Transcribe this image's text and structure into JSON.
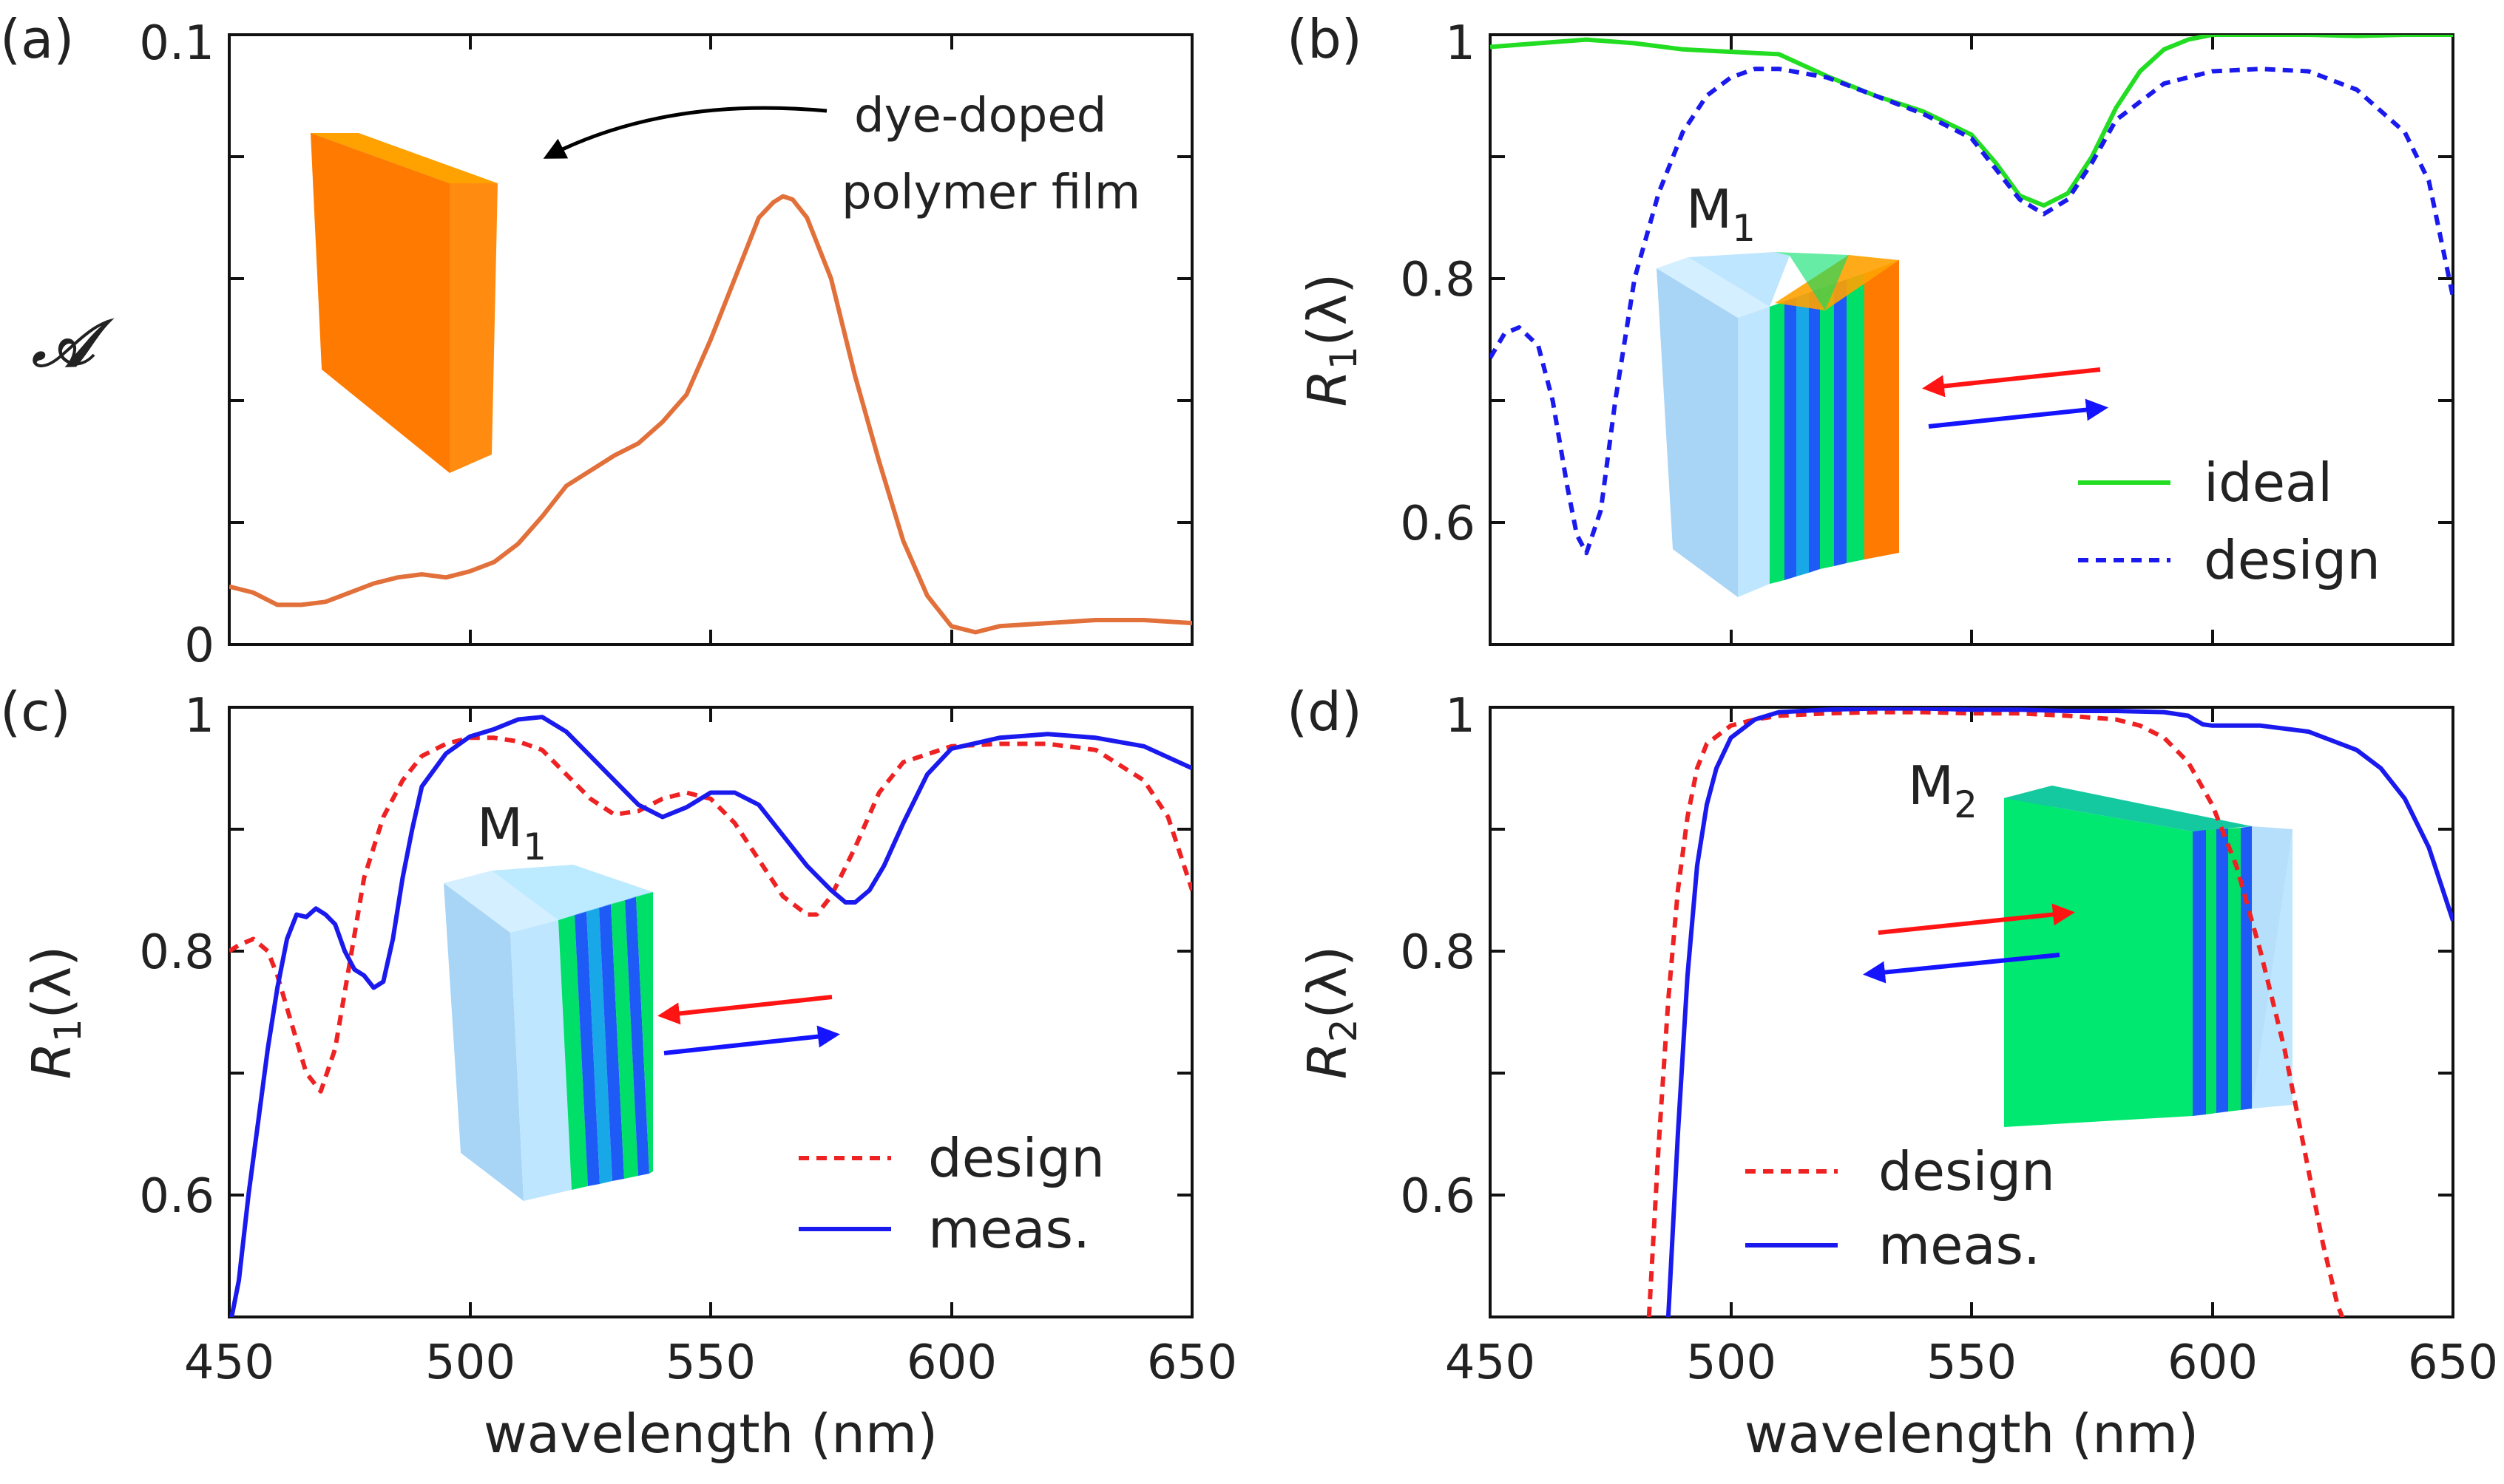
{
  "figure": {
    "xlabel": "wavelength (nm)",
    "x_ticks": [
      "450",
      "500",
      "550",
      "600",
      "650"
    ]
  },
  "chart_data": [
    {
      "type": "line",
      "panel": "(a)",
      "ylabel": "𝒜",
      "xlim": [
        450,
        650
      ],
      "ylim": [
        0,
        0.1
      ],
      "y_tick_labels": [
        "0",
        "0.1"
      ],
      "y_ticks": [
        0,
        0.02,
        0.04,
        0.06,
        0.08,
        0.1
      ],
      "annotation": {
        "line1": "dye-doped",
        "line2": "polymer film"
      },
      "colors": {
        "absorption": "#e2703a",
        "slab_front": "#ff7a00",
        "slab_top": "#ffa200",
        "slab_side": "#ff8c10",
        "arrow": "#000000"
      },
      "series": [
        {
          "name": "absorption",
          "x": [
            450,
            455,
            460,
            465,
            470,
            475,
            480,
            485,
            490,
            495,
            500,
            505,
            510,
            515,
            520,
            525,
            530,
            535,
            540,
            545,
            550,
            555,
            560,
            563,
            565,
            567,
            570,
            575,
            580,
            585,
            590,
            595,
            600,
            605,
            610,
            620,
            630,
            640,
            650
          ],
          "y": [
            0.0095,
            0.0085,
            0.0065,
            0.0065,
            0.007,
            0.0085,
            0.01,
            0.011,
            0.0115,
            0.011,
            0.012,
            0.0135,
            0.0165,
            0.021,
            0.026,
            0.0285,
            0.031,
            0.033,
            0.0365,
            0.041,
            0.05,
            0.06,
            0.07,
            0.0725,
            0.0735,
            0.073,
            0.07,
            0.06,
            0.044,
            0.03,
            0.017,
            0.008,
            0.003,
            0.002,
            0.003,
            0.0035,
            0.004,
            0.004,
            0.0035
          ]
        }
      ]
    },
    {
      "type": "line",
      "panel": "(b)",
      "ylabel_main": "R",
      "ylabel_sub": "1",
      "ylabel_suffix": "(λ)",
      "xlim": [
        450,
        650
      ],
      "ylim": [
        0.5,
        1.0
      ],
      "y_tick_labels": [
        "0.6",
        "0.8",
        "1"
      ],
      "y_ticks": [
        0.6,
        0.7,
        0.8,
        0.9,
        1.0
      ],
      "inset_label_main": "M",
      "inset_label_sub": "1",
      "colors": {
        "glass_front": "#bfe6ff",
        "glass_side": "#a8d4f5",
        "layer_green": "#00e068",
        "layer_blue": "#1e5af5",
        "layer_mid": "#18a8e8",
        "dye": "#ff7a00",
        "dye_top": "#ffa200",
        "arrow_in": "#ff1414",
        "arrow_out": "#1414ff"
      },
      "legend": [
        {
          "label": "ideal",
          "color": "#22dd22",
          "dash": false
        },
        {
          "label": "design",
          "color": "#1a1aee",
          "dash": true
        }
      ],
      "series": [
        {
          "name": "ideal",
          "color": "#22dd22",
          "x": [
            450,
            460,
            470,
            480,
            490,
            500,
            510,
            520,
            530,
            540,
            550,
            555,
            560,
            565,
            570,
            575,
            580,
            585,
            590,
            595,
            600,
            610,
            620,
            630,
            640,
            650
          ],
          "y": [
            0.99,
            0.993,
            0.996,
            0.993,
            0.988,
            0.986,
            0.984,
            0.966,
            0.95,
            0.937,
            0.918,
            0.895,
            0.868,
            0.86,
            0.87,
            0.9,
            0.94,
            0.97,
            0.988,
            0.996,
            1.0,
            1.0,
            1.0,
            0.999,
            1.0,
            1.0
          ]
        },
        {
          "name": "design",
          "color": "#1a1aee",
          "dash": true,
          "x": [
            450,
            453,
            456,
            460,
            463,
            466,
            468,
            470,
            473,
            476,
            480,
            485,
            490,
            495,
            500,
            505,
            510,
            520,
            530,
            540,
            550,
            555,
            560,
            565,
            570,
            575,
            580,
            590,
            600,
            610,
            620,
            630,
            640,
            645,
            650
          ],
          "y": [
            0.735,
            0.755,
            0.76,
            0.745,
            0.7,
            0.63,
            0.59,
            0.575,
            0.61,
            0.7,
            0.8,
            0.87,
            0.92,
            0.95,
            0.965,
            0.972,
            0.972,
            0.965,
            0.95,
            0.935,
            0.915,
            0.89,
            0.865,
            0.853,
            0.865,
            0.895,
            0.93,
            0.96,
            0.97,
            0.972,
            0.97,
            0.955,
            0.92,
            0.88,
            0.785
          ]
        }
      ]
    },
    {
      "type": "line",
      "panel": "(c)",
      "ylabel_main": "R",
      "ylabel_sub": "1",
      "ylabel_suffix": "(λ)",
      "xlim": [
        450,
        650
      ],
      "ylim": [
        0.5,
        1.0
      ],
      "y_tick_labels": [
        "0.6",
        "0.8",
        "1"
      ],
      "y_ticks": [
        0.6,
        0.7,
        0.8,
        0.9,
        1.0
      ],
      "inset_label_main": "M",
      "inset_label_sub": "1",
      "colors": {
        "glass_front": "#bfe6ff",
        "glass_side": "#a8d4f5",
        "layer_green": "#00e068",
        "layer_blue": "#1e5af5",
        "layer_mid": "#18a8e8",
        "arrow_in": "#ff1414",
        "arrow_out": "#1414ff"
      },
      "legend": [
        {
          "label": "design",
          "color": "#ee2222",
          "dash": true
        },
        {
          "label": "meas.",
          "color": "#1a1aee",
          "dash": false
        }
      ],
      "series": [
        {
          "name": "design",
          "color": "#ee2222",
          "dash": true,
          "x": [
            450,
            452,
            455,
            458,
            460,
            463,
            466,
            469,
            472,
            475,
            478,
            482,
            486,
            490,
            495,
            500,
            505,
            510,
            515,
            520,
            525,
            530,
            535,
            540,
            545,
            550,
            555,
            560,
            565,
            570,
            572,
            575,
            580,
            585,
            590,
            600,
            610,
            620,
            630,
            640,
            645,
            650
          ],
          "y": [
            0.8,
            0.805,
            0.81,
            0.8,
            0.78,
            0.74,
            0.7,
            0.685,
            0.72,
            0.79,
            0.86,
            0.91,
            0.94,
            0.96,
            0.97,
            0.975,
            0.975,
            0.972,
            0.965,
            0.945,
            0.925,
            0.912,
            0.915,
            0.925,
            0.93,
            0.925,
            0.905,
            0.875,
            0.845,
            0.83,
            0.83,
            0.845,
            0.885,
            0.93,
            0.955,
            0.968,
            0.97,
            0.97,
            0.965,
            0.94,
            0.91,
            0.85
          ]
        },
        {
          "name": "meas.",
          "color": "#1a1aee",
          "x": [
            450,
            452,
            454,
            456,
            458,
            460,
            462,
            464,
            466,
            468,
            470,
            472,
            474,
            476,
            478,
            480,
            482,
            484,
            486,
            488,
            490,
            495,
            500,
            505,
            510,
            515,
            520,
            525,
            530,
            535,
            540,
            545,
            550,
            555,
            560,
            565,
            570,
            575,
            578,
            580,
            583,
            586,
            590,
            595,
            600,
            610,
            620,
            630,
            640,
            650
          ],
          "y": [
            0.49,
            0.53,
            0.6,
            0.66,
            0.72,
            0.77,
            0.81,
            0.83,
            0.828,
            0.835,
            0.83,
            0.822,
            0.8,
            0.785,
            0.78,
            0.77,
            0.775,
            0.81,
            0.86,
            0.9,
            0.935,
            0.962,
            0.976,
            0.982,
            0.99,
            0.992,
            0.98,
            0.96,
            0.94,
            0.92,
            0.91,
            0.918,
            0.93,
            0.93,
            0.92,
            0.895,
            0.87,
            0.85,
            0.84,
            0.84,
            0.85,
            0.87,
            0.905,
            0.945,
            0.966,
            0.975,
            0.978,
            0.975,
            0.968,
            0.95
          ]
        }
      ]
    },
    {
      "type": "line",
      "panel": "(d)",
      "ylabel_main": "R",
      "ylabel_sub": "2",
      "ylabel_suffix": "(λ)",
      "xlim": [
        450,
        650
      ],
      "ylim": [
        0.5,
        1.0
      ],
      "y_tick_labels": [
        "0.6",
        "0.8",
        "1"
      ],
      "y_ticks": [
        0.6,
        0.7,
        0.8,
        0.9,
        1.0
      ],
      "inset_label_main": "M",
      "inset_label_sub": "2",
      "colors": {
        "glass_front": "#bfe6ff",
        "glass_side": "#a8d4f5",
        "layer_green": "#00e068",
        "layer_blue": "#1e5af5",
        "layer_mid": "#18a8e8",
        "arrow_in": "#ff1414",
        "arrow_out": "#1414ff"
      },
      "legend": [
        {
          "label": "design",
          "color": "#ee2222",
          "dash": true
        },
        {
          "label": "meas.",
          "color": "#1a1aee",
          "dash": false
        }
      ],
      "series": [
        {
          "name": "design",
          "color": "#ee2222",
          "dash": true,
          "x": [
            483,
            485,
            487,
            489,
            491,
            493,
            495,
            500,
            505,
            510,
            520,
            530,
            540,
            550,
            560,
            570,
            580,
            585,
            590,
            595,
            600,
            605,
            610,
            615,
            620,
            623,
            626,
            628
          ],
          "y": [
            0.5,
            0.64,
            0.76,
            0.85,
            0.91,
            0.95,
            0.97,
            0.985,
            0.99,
            0.993,
            0.995,
            0.996,
            0.996,
            0.995,
            0.995,
            0.993,
            0.99,
            0.985,
            0.975,
            0.955,
            0.92,
            0.87,
            0.8,
            0.72,
            0.62,
            0.56,
            0.51,
            0.49
          ]
        },
        {
          "name": "meas.",
          "color": "#1a1aee",
          "x": [
            487,
            489,
            491,
            493,
            495,
            497,
            500,
            505,
            510,
            520,
            530,
            540,
            550,
            560,
            570,
            580,
            590,
            595,
            598,
            600,
            610,
            620,
            630,
            635,
            640,
            645,
            650
          ],
          "y": [
            0.5,
            0.65,
            0.78,
            0.87,
            0.92,
            0.95,
            0.975,
            0.99,
            0.996,
            0.998,
            0.999,
            0.999,
            0.998,
            0.998,
            0.997,
            0.997,
            0.996,
            0.993,
            0.986,
            0.985,
            0.985,
            0.98,
            0.965,
            0.95,
            0.925,
            0.885,
            0.825
          ]
        }
      ]
    }
  ]
}
